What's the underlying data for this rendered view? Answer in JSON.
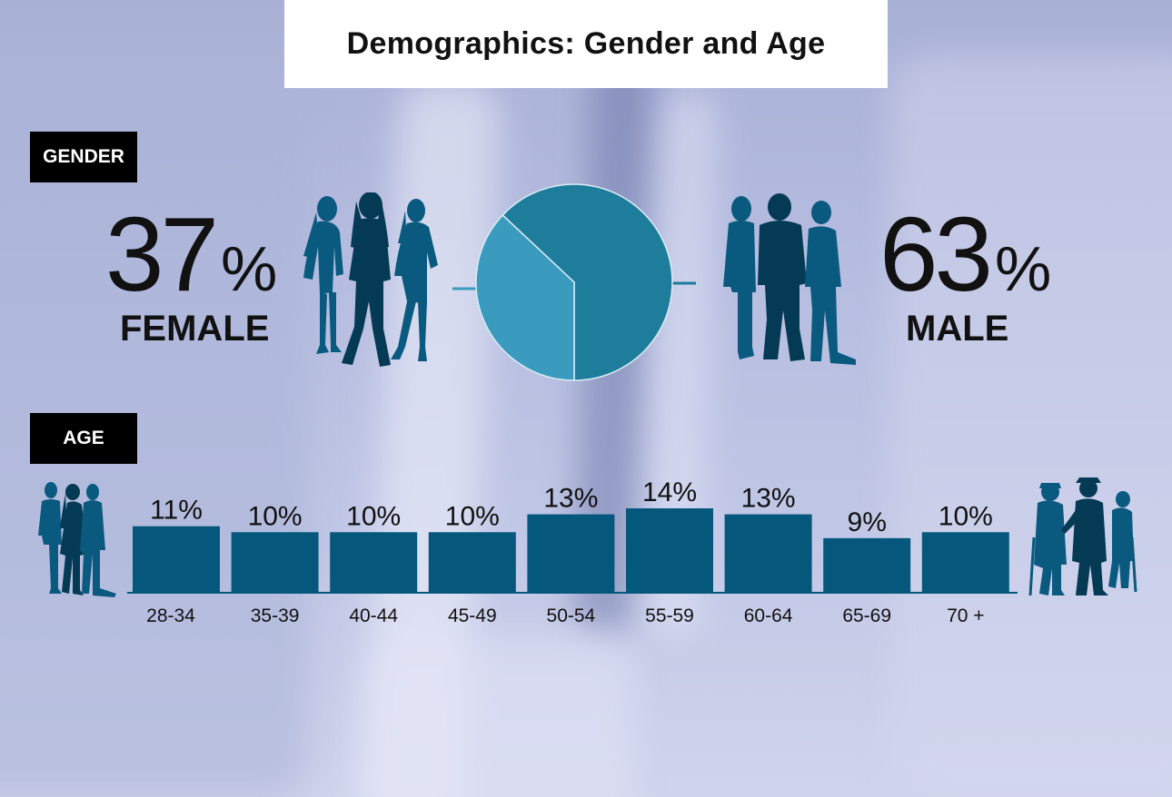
{
  "title": "Demographics: Gender and Age",
  "sections": {
    "gender": "GENDER",
    "age": "AGE"
  },
  "gender": {
    "female": {
      "value": "37",
      "sign": "%",
      "label": "FEMALE"
    },
    "male": {
      "value": "63",
      "sign": "%",
      "label": "MALE"
    }
  },
  "colors": {
    "female_slice": "#3a9bbf",
    "male_slice": "#1f7d9c",
    "bar": "#05587c",
    "silhouette_dark": "#053a55",
    "silhouette_mid": "#0a5a80"
  },
  "icons": [
    "women-group-icon",
    "men-group-icon",
    "young-people-icon",
    "elderly-people-icon"
  ],
  "chart_data": [
    {
      "type": "pie",
      "categories": [
        "FEMALE",
        "MALE"
      ],
      "values": [
        37,
        63
      ]
    },
    {
      "type": "bar",
      "categories": [
        "28-34",
        "35-39",
        "40-44",
        "45-49",
        "50-54",
        "55-59",
        "60-64",
        "65-69",
        "70 +"
      ],
      "values": [
        11,
        10,
        10,
        10,
        13,
        14,
        13,
        9,
        10
      ],
      "data_labels": [
        "11%",
        "10%",
        "10%",
        "10%",
        "13%",
        "14%",
        "13%",
        "9%",
        "10%"
      ],
      "ylim": [
        0,
        14
      ],
      "grid": false
    }
  ]
}
